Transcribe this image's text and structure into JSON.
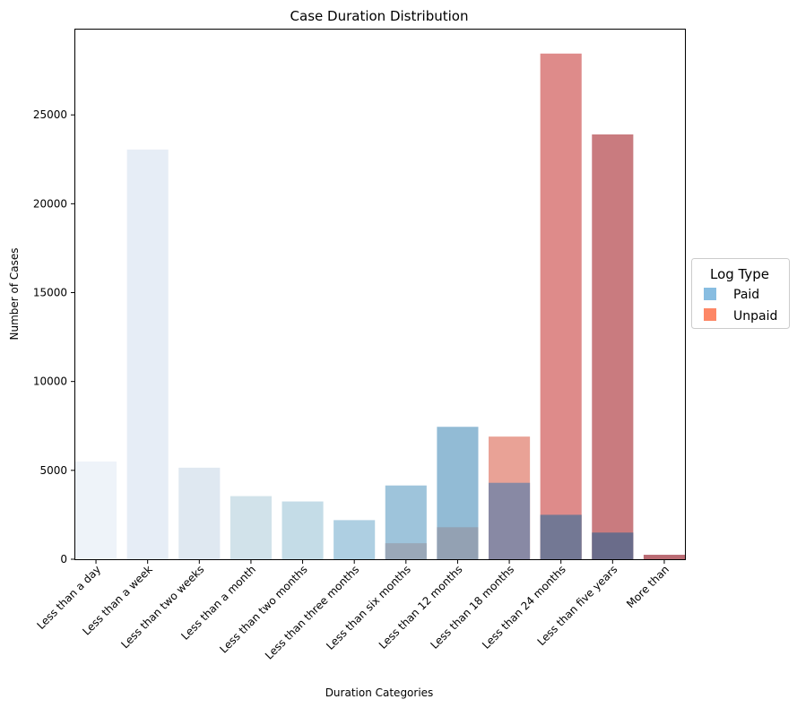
{
  "chart_data": {
    "type": "bar",
    "title": "Case Duration Distribution",
    "xlabel": "Duration Categories",
    "ylabel": "Number of Cases",
    "ylim": [
      0,
      29800
    ],
    "yticks": [
      0,
      5000,
      10000,
      15000,
      20000,
      25000
    ],
    "grid": false,
    "legend": {
      "title": "Log Type",
      "placement": "right"
    },
    "categories": [
      "Less than a day",
      "Less than a week",
      "Less than two weeks",
      "Less than a month",
      "Less than two months",
      "Less than three months",
      "Less than six months",
      "Less than 12 months",
      "Less than 18 months",
      "Less than 24 months",
      "Less than five years",
      "More than"
    ],
    "series": [
      {
        "name": "Paid",
        "legend_color": "#88bde1",
        "colors": [
          "#eef3f9",
          "#e6edf6",
          "#dfe8f1",
          "#d1e2ea",
          "#c4dce7",
          "#aecfe2",
          "#9ec4db",
          "#92bbd5",
          "#90b7d2",
          "#8cb4d0",
          "#8ab2cf",
          "#89b1ce"
        ],
        "values": [
          5500,
          23050,
          5150,
          3550,
          3250,
          2200,
          4150,
          7450,
          4300,
          2500,
          1500,
          0
        ]
      },
      {
        "name": "Unpaid",
        "legend_color": "#fd8766",
        "colors": [
          "#f6c2b5",
          "#f4b8aa",
          "#f2ae9f",
          "#f0a494",
          "#ee9a89",
          "#ec907f",
          "#a4a7b5",
          "#a9a1ac",
          "#e9a296",
          "#de8b8a",
          "#c97b7f",
          "#ba6b73"
        ],
        "values": [
          0,
          0,
          0,
          0,
          0,
          0,
          900,
          1800,
          6900,
          28450,
          23900,
          250
        ]
      }
    ],
    "overlap_colors": [
      "#8e9fb0",
      "#8e9fb0",
      "#8e9fb0",
      "#8e9fb0",
      "#8e9fb0",
      "#8e9fb0",
      "#9aa8b8",
      "#93a1b3",
      "#8889a4",
      "#737894",
      "#6a6c8a",
      "#6a6c8a"
    ]
  }
}
